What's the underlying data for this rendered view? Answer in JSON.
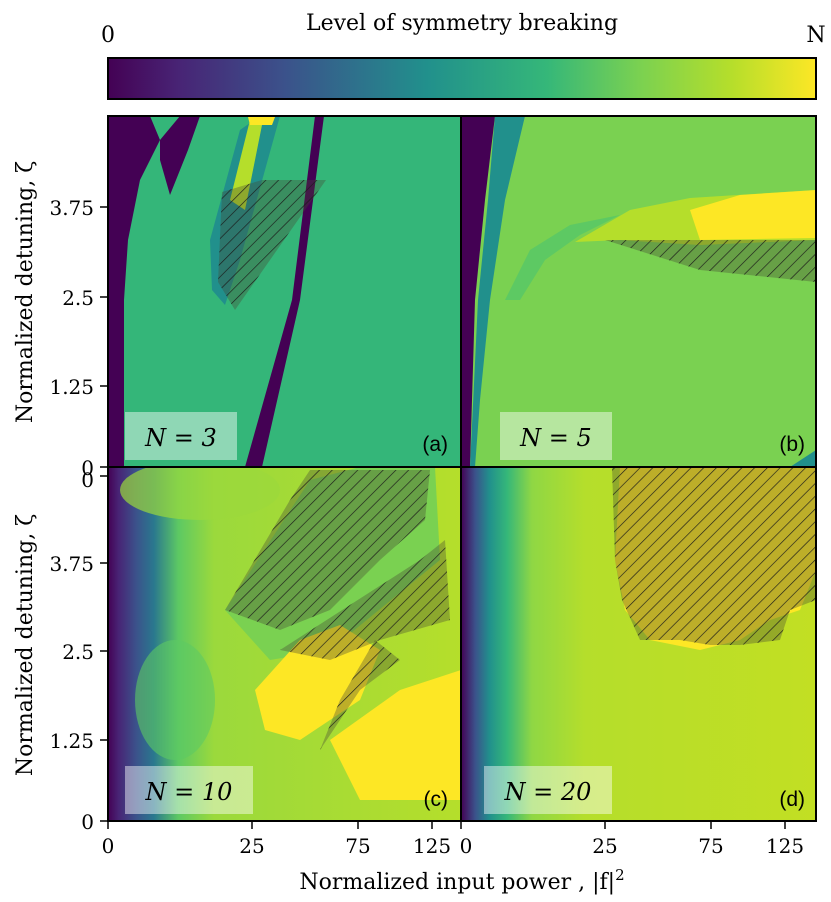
{
  "colorbar": {
    "title": "Level of symmetry breaking",
    "min_label": "0",
    "max_label": "N",
    "colormap": [
      "#440154",
      "#3b528b",
      "#21908c",
      "#5dc963",
      "#fde725"
    ]
  },
  "axes": {
    "xlabel": "Normalized input power , |f|",
    "xlabel_sup": "2",
    "ylabel": "Normalized detuning, ζ",
    "x_ticks": [
      "0",
      "25",
      "75",
      "125"
    ],
    "y_ticks": [
      "0",
      "1.25",
      "2.5",
      "3.75"
    ]
  },
  "chart_data": [
    {
      "type": "heatmap",
      "panel": "(a)",
      "label": "N = 3",
      "N": 3,
      "xlabel": "",
      "ylabel": "Normalized detuning, ζ",
      "y_ticks": [
        "1.25",
        "2.5",
        "3.75"
      ],
      "region_colors": [
        "#440154",
        "#34b679",
        "#21908c",
        "#fde725",
        "#b5de2b"
      ],
      "hatched_region": true
    },
    {
      "type": "heatmap",
      "panel": "(b)",
      "label": "N = 5",
      "N": 5,
      "xlabel": "",
      "ylabel": "",
      "region_colors": [
        "#440154",
        "#7ad151",
        "#fde725",
        "#21908c"
      ],
      "hatched_region": true
    },
    {
      "type": "heatmap",
      "panel": "(c)",
      "label": "N = 10",
      "N": 10,
      "xlabel": "",
      "ylabel": "Normalized detuning, ζ",
      "x_ticks": [
        "0",
        "25",
        "75",
        "125"
      ],
      "y_ticks": [
        "0",
        "1.25",
        "2.5",
        "3.75"
      ],
      "region_colors": [
        "#440154",
        "#2a788e",
        "#7ad151",
        "#b5de2b",
        "#fde725"
      ],
      "hatched_region": true
    },
    {
      "type": "heatmap",
      "panel": "(d)",
      "label": "N = 20",
      "N": 20,
      "xlabel": "",
      "ylabel": "",
      "x_ticks": [
        "0",
        "25",
        "75",
        "125"
      ],
      "region_colors": [
        "#440154",
        "#35b779",
        "#b5de2b",
        "#fde725"
      ],
      "hatched_region": true
    }
  ]
}
